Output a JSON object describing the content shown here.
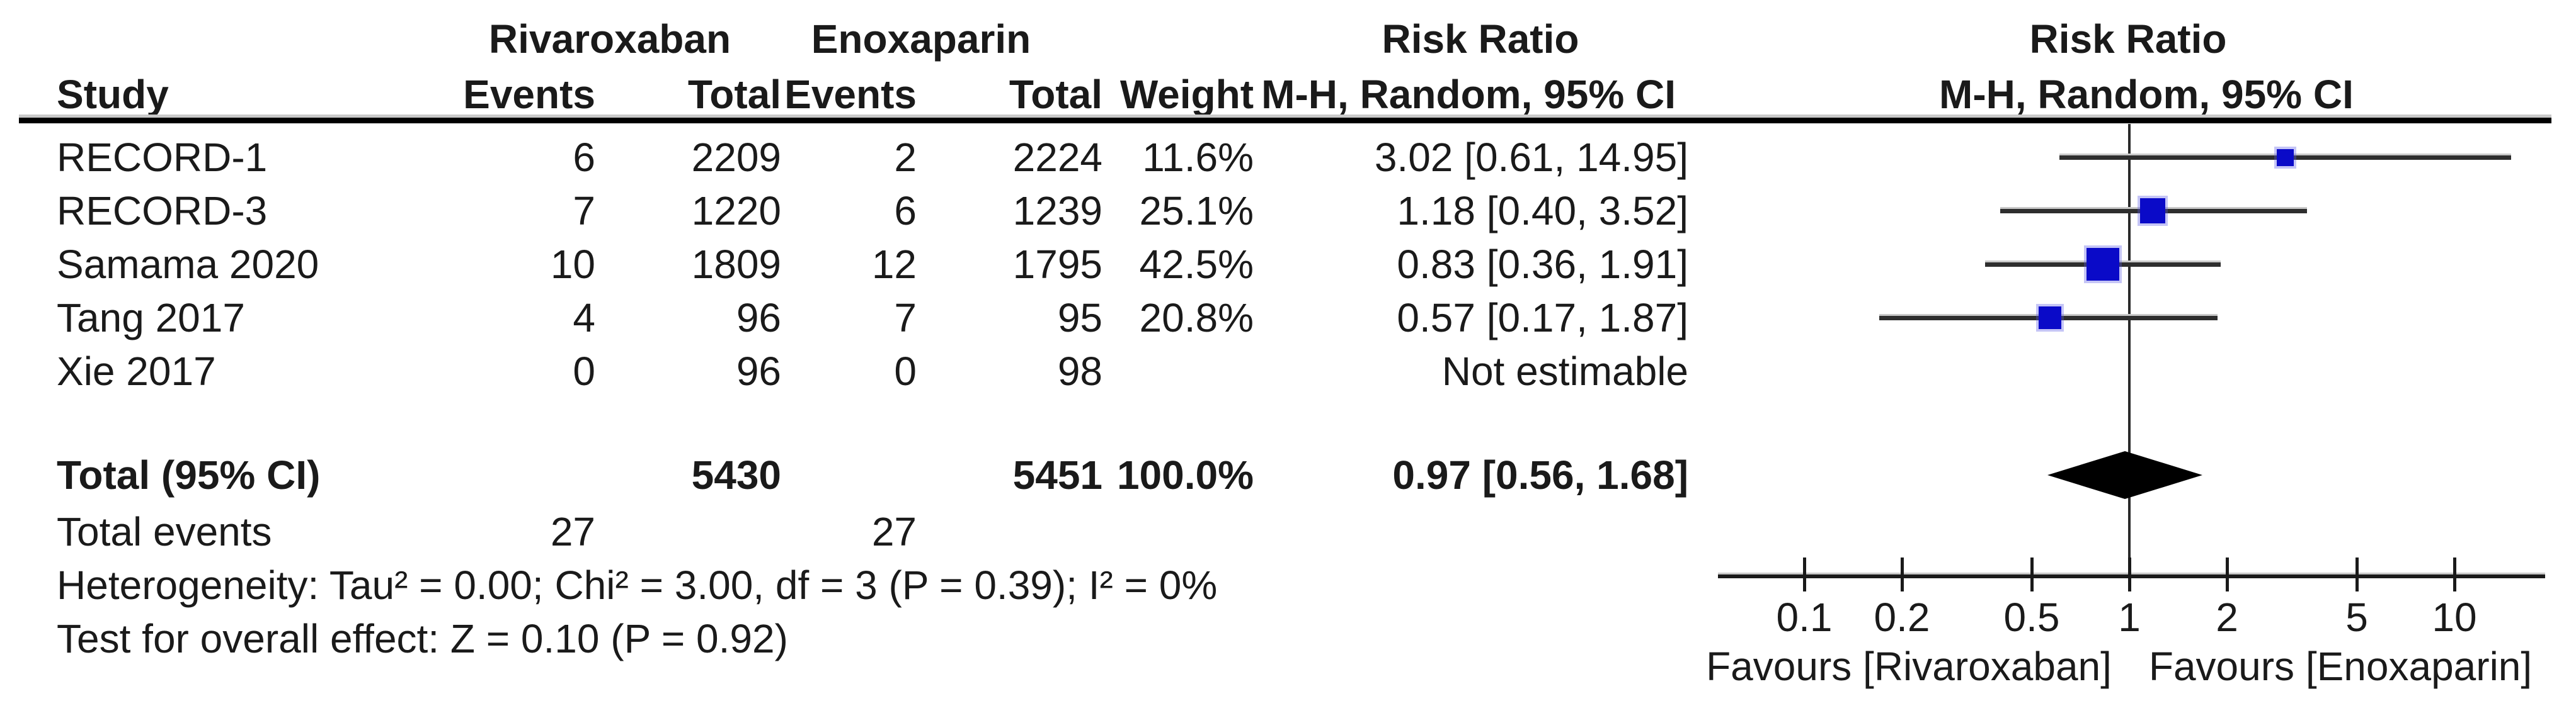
{
  "header": {
    "group1": "Rivaroxaban",
    "group2": "Enoxaparin",
    "risk_ratio": "Risk Ratio",
    "method_ci": "M-H, Random, 95% CI",
    "col_study": "Study",
    "col_events": "Events",
    "col_total": "Total",
    "col_weight": "Weight"
  },
  "studies": [
    {
      "study": "RECORD-1",
      "riv_events": "6",
      "riv_total": "2209",
      "enox_events": "2",
      "enox_total": "2224",
      "weight_label": "11.6%",
      "weight_pct": 11.6,
      "rr_label": "3.02 [0.61, 14.95]",
      "rr": 3.02,
      "ci_low": 0.61,
      "ci_high": 14.95
    },
    {
      "study": "RECORD-3",
      "riv_events": "7",
      "riv_total": "1220",
      "enox_events": "6",
      "enox_total": "1239",
      "weight_label": "25.1%",
      "weight_pct": 25.1,
      "rr_label": "1.18 [0.40, 3.52]",
      "rr": 1.18,
      "ci_low": 0.4,
      "ci_high": 3.52
    },
    {
      "study": "Samama 2020",
      "riv_events": "10",
      "riv_total": "1809",
      "enox_events": "12",
      "enox_total": "1795",
      "weight_label": "42.5%",
      "weight_pct": 42.5,
      "rr_label": "0.83 [0.36, 1.91]",
      "rr": 0.83,
      "ci_low": 0.36,
      "ci_high": 1.91
    },
    {
      "study": "Tang 2017",
      "riv_events": "4",
      "riv_total": "96",
      "enox_events": "7",
      "enox_total": "95",
      "weight_label": "20.8%",
      "weight_pct": 20.8,
      "rr_label": "0.57 [0.17, 1.87]",
      "rr": 0.57,
      "ci_low": 0.17,
      "ci_high": 1.87
    },
    {
      "study": "Xie 2017",
      "riv_events": "0",
      "riv_total": "96",
      "enox_events": "0",
      "enox_total": "98",
      "weight_label": "",
      "weight_pct": null,
      "rr_label": "Not estimable",
      "rr": null,
      "ci_low": null,
      "ci_high": null
    }
  ],
  "summary": {
    "label": "Total (95% CI)",
    "riv_total": "5430",
    "enox_total": "5451",
    "weight_label": "100.0%",
    "rr_label": "0.97 [0.56, 1.68]",
    "rr": 0.97,
    "ci_low": 0.56,
    "ci_high": 1.68
  },
  "total_events": {
    "label": "Total events",
    "riv": "27",
    "enox": "27"
  },
  "footer": {
    "heterogeneity": "Heterogeneity: Tau² = 0.00; Chi² = 3.00, df = 3 (P = 0.39); I² = 0%",
    "overall": "Test for overall effect: Z = 0.10 (P = 0.92)"
  },
  "axis": {
    "ticks": [
      {
        "value": 0.1,
        "label": "0.1"
      },
      {
        "value": 0.2,
        "label": "0.2"
      },
      {
        "value": 0.5,
        "label": "0.5"
      },
      {
        "value": 1,
        "label": "1"
      },
      {
        "value": 2,
        "label": "2"
      },
      {
        "value": 5,
        "label": "5"
      },
      {
        "value": 10,
        "label": "10"
      }
    ],
    "favours_left": "Favours [Rivaroxaban]",
    "favours_right": "Favours [Enoxaparin]"
  },
  "colors": {
    "marker_blue": "#0a0ac8",
    "diamond_black": "#000000",
    "ci_line": "#2e2e2e"
  },
  "chart_data": {
    "type": "scatter",
    "subtype": "forest-plot-meta-analysis",
    "title": "Risk Ratio",
    "effect_measure": "M-H, Random, 95% CI",
    "x_scale": "log10",
    "x_ticks": [
      0.1,
      0.2,
      0.5,
      1,
      2,
      5,
      10
    ],
    "x_axis_labels": {
      "left": "Favours [Rivaroxaban]",
      "right": "Favours [Enoxaparin]"
    },
    "reference_line": 1,
    "studies": [
      {
        "study": "RECORD-1",
        "rivaroxaban_events": 6,
        "rivaroxaban_total": 2209,
        "enoxaparin_events": 2,
        "enoxaparin_total": 2224,
        "weight_pct": 11.6,
        "rr": 3.02,
        "ci_low": 0.61,
        "ci_high": 14.95
      },
      {
        "study": "RECORD-3",
        "rivaroxaban_events": 7,
        "rivaroxaban_total": 1220,
        "enoxaparin_events": 6,
        "enoxaparin_total": 1239,
        "weight_pct": 25.1,
        "rr": 1.18,
        "ci_low": 0.4,
        "ci_high": 3.52
      },
      {
        "study": "Samama 2020",
        "rivaroxaban_events": 10,
        "rivaroxaban_total": 1809,
        "enoxaparin_events": 12,
        "enoxaparin_total": 1795,
        "weight_pct": 42.5,
        "rr": 0.83,
        "ci_low": 0.36,
        "ci_high": 1.91
      },
      {
        "study": "Tang 2017",
        "rivaroxaban_events": 4,
        "rivaroxaban_total": 96,
        "enoxaparin_events": 7,
        "enoxaparin_total": 95,
        "weight_pct": 20.8,
        "rr": 0.57,
        "ci_low": 0.17,
        "ci_high": 1.87
      },
      {
        "study": "Xie 2017",
        "rivaroxaban_events": 0,
        "rivaroxaban_total": 96,
        "enoxaparin_events": 0,
        "enoxaparin_total": 98,
        "weight_pct": null,
        "rr": null,
        "ci_low": null,
        "ci_high": null,
        "note": "Not estimable"
      }
    ],
    "summary": {
      "label": "Total (95% CI)",
      "rivaroxaban_total": 5430,
      "enoxaparin_total": 5451,
      "weight_pct": 100.0,
      "rr": 0.97,
      "ci_low": 0.56,
      "ci_high": 1.68,
      "total_events_rivaroxaban": 27,
      "total_events_enoxaparin": 27
    },
    "heterogeneity": {
      "tau2": 0.0,
      "chi2": 3.0,
      "df": 3,
      "p": 0.39,
      "i2_pct": 0
    },
    "overall_effect": {
      "z": 0.1,
      "p": 0.92
    }
  }
}
